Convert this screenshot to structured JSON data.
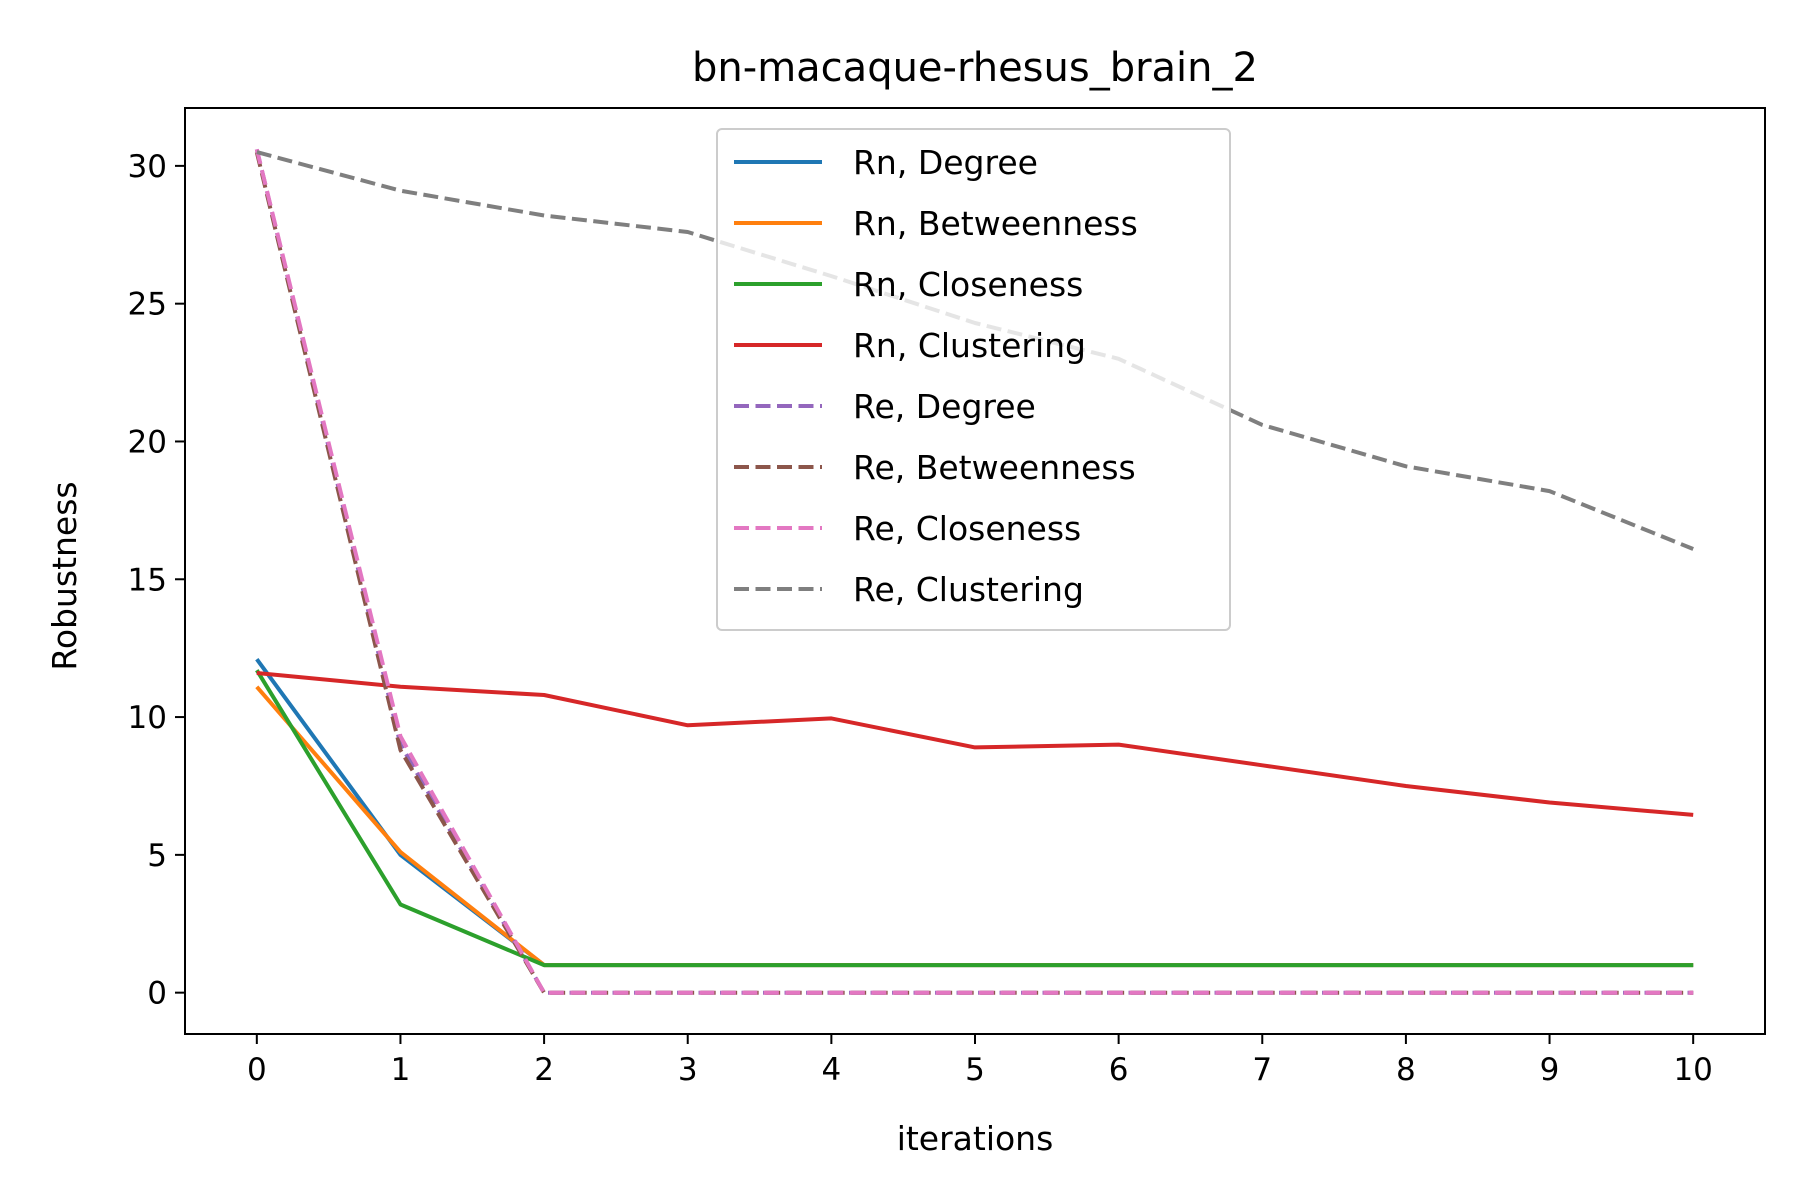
{
  "chart_data": {
    "type": "line",
    "title": "bn-macaque-rhesus_brain_2",
    "xlabel": "iterations",
    "ylabel": "Robustness",
    "x": [
      0,
      1,
      2,
      3,
      4,
      5,
      6,
      7,
      8,
      9,
      10
    ],
    "xlim": [
      -0.5,
      10.5
    ],
    "ylim": [
      -1.5,
      32.1
    ],
    "xticks": [
      "0",
      "1",
      "2",
      "3",
      "4",
      "5",
      "6",
      "7",
      "8",
      "9",
      "10"
    ],
    "yticks": [
      "0",
      "5",
      "10",
      "15",
      "20",
      "25",
      "30"
    ],
    "grid": false,
    "legend_position": "top-center",
    "series": [
      {
        "name": "Rn, Degree",
        "color": "#1f77b4",
        "dash": false,
        "values": [
          12.1,
          5.0,
          1.0,
          1.0,
          1.0,
          1.0,
          1.0,
          1.0,
          1.0,
          1.0,
          1.0
        ]
      },
      {
        "name": "Rn, Betweenness",
        "color": "#ff7f0e",
        "dash": false,
        "values": [
          11.1,
          5.1,
          1.0,
          1.0,
          1.0,
          1.0,
          1.0,
          1.0,
          1.0,
          1.0,
          1.0
        ]
      },
      {
        "name": "Rn, Closeness",
        "color": "#2ca02c",
        "dash": false,
        "values": [
          11.7,
          3.2,
          1.0,
          1.0,
          1.0,
          1.0,
          1.0,
          1.0,
          1.0,
          1.0,
          1.0
        ]
      },
      {
        "name": "Rn, Clustering",
        "color": "#d62728",
        "dash": false,
        "values": [
          11.6,
          11.1,
          10.8,
          9.7,
          9.95,
          8.9,
          9.0,
          8.25,
          7.5,
          6.9,
          6.45
        ]
      },
      {
        "name": "Re, Degree",
        "color": "#9467bd",
        "dash": true,
        "values": [
          30.6,
          9.0,
          0.0,
          0.0,
          0.0,
          0.0,
          0.0,
          0.0,
          0.0,
          0.0,
          0.0
        ]
      },
      {
        "name": "Re, Betweenness",
        "color": "#8c564b",
        "dash": true,
        "values": [
          30.5,
          8.8,
          0.0,
          0.0,
          0.0,
          0.0,
          0.0,
          0.0,
          0.0,
          0.0,
          0.0
        ]
      },
      {
        "name": "Re, Closeness",
        "color": "#e377c2",
        "dash": true,
        "values": [
          30.6,
          9.3,
          0.0,
          0.0,
          0.0,
          0.0,
          0.0,
          0.0,
          0.0,
          0.0,
          0.0
        ]
      },
      {
        "name": "Re, Clustering",
        "color": "#7f7f7f",
        "dash": true,
        "values": [
          30.5,
          29.1,
          28.2,
          27.6,
          26.0,
          24.3,
          23.0,
          20.6,
          19.1,
          18.2,
          16.1
        ]
      }
    ]
  }
}
